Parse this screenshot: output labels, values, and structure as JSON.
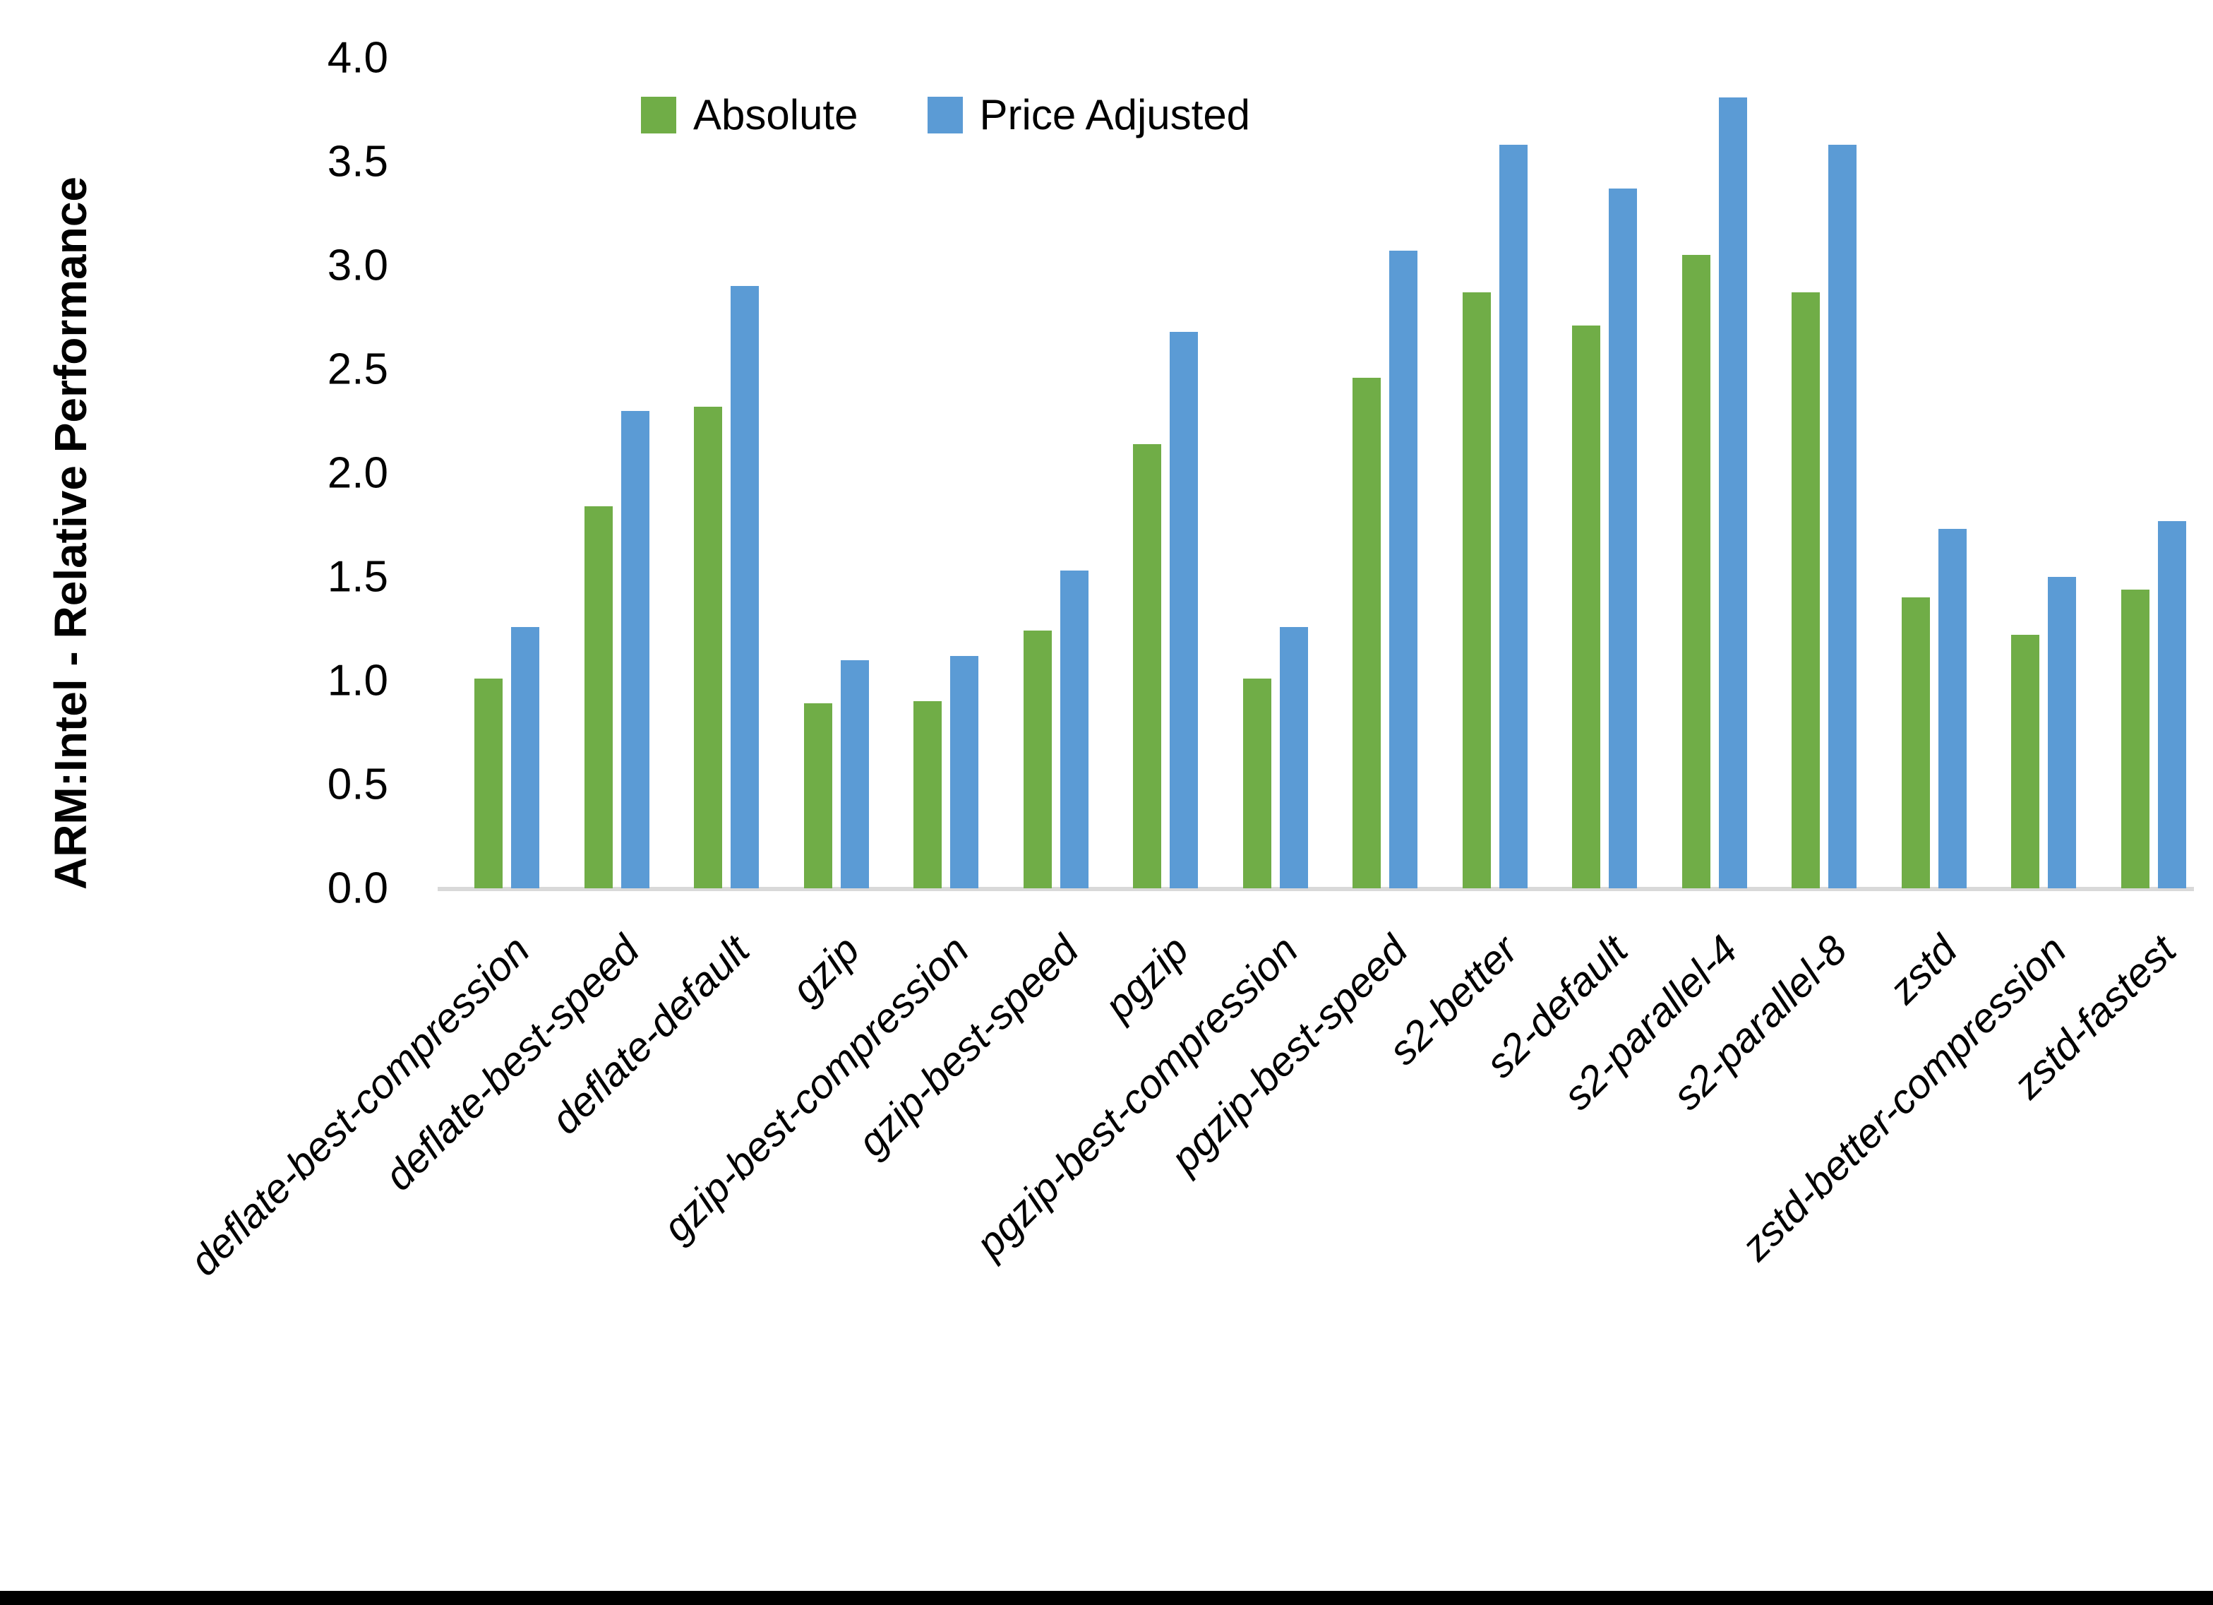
{
  "chart_data": {
    "type": "bar",
    "title": "",
    "xlabel": "",
    "ylabel": "ARM:Intel - Relative Performance",
    "ylim": [
      0.0,
      4.0
    ],
    "ytick_step": 0.5,
    "ytick_labels": [
      "0.0",
      "0.5",
      "1.0",
      "1.5",
      "2.0",
      "2.5",
      "3.0",
      "3.5",
      "4.0"
    ],
    "grid": false,
    "legend_position": "top-center",
    "axis_line_color": "#d9d9d9",
    "text_color": "#000000",
    "categories": [
      "deflate-best-compression",
      "deflate-best-speed",
      "deflate-default",
      "gzip",
      "gzip-best-compression",
      "gzip-best-speed",
      "pgzip",
      "pgzip-best-compression",
      "pgzip-best-speed",
      "s2-better",
      "s2-default",
      "s2-parallel-4",
      "s2-parallel-8",
      "zstd",
      "zstd-better-compression",
      "zstd-fastest"
    ],
    "series": [
      {
        "name": "Absolute",
        "color": "#70ad47",
        "values": [
          1.01,
          1.84,
          2.32,
          0.89,
          0.9,
          1.24,
          2.14,
          1.01,
          2.46,
          2.87,
          2.71,
          3.05,
          2.87,
          1.4,
          1.22,
          1.44
        ]
      },
      {
        "name": "Price Adjusted",
        "color": "#5b9bd5",
        "values": [
          1.26,
          2.3,
          2.9,
          1.1,
          1.12,
          1.53,
          2.68,
          1.26,
          3.07,
          3.58,
          3.37,
          3.81,
          3.58,
          1.73,
          1.5,
          1.77
        ]
      }
    ]
  }
}
